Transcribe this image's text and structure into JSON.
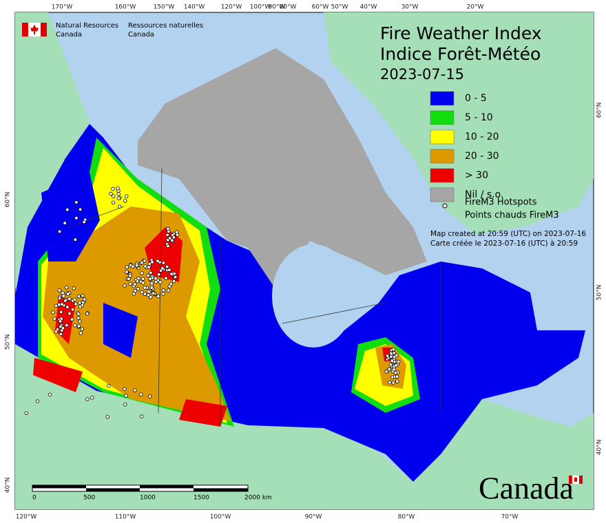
{
  "header": {
    "agency_en": [
      "Natural Resources",
      "Canada"
    ],
    "agency_fr": [
      "Ressources naturelles",
      "Canada"
    ],
    "title_en": "Fire Weather Index",
    "title_fr": "Indice Forêt-Météo",
    "date": "2023-07-15"
  },
  "legend": {
    "items": [
      {
        "label": "0 - 5",
        "color": "#0000ee"
      },
      {
        "label": "5 - 10",
        "color": "#11dd11"
      },
      {
        "label": "10 - 20",
        "color": "#ffff00"
      },
      {
        "label": "20 - 30",
        "color": "#dd9900"
      },
      {
        "label": "> 30",
        "color": "#ee0000"
      },
      {
        "label": "Nil / s.o.",
        "color": "#a6a6a6"
      }
    ],
    "hotspots": [
      "FireM3 Hotspots",
      "Points chauds FireM3"
    ]
  },
  "notes": [
    "Map created at 20:59 (UTC) on 2023-07-16",
    "Carte créée le 2023-07-16 (UTC) à 20:59"
  ],
  "graticule": {
    "top": [
      "170°W",
      "160°W",
      "150°W",
      "140°W",
      "120°W",
      "100°W",
      "90°W",
      "80°W",
      "60°W",
      "50°W",
      "40°W",
      "30°W",
      "20°W"
    ],
    "bottom": [
      "120°W",
      "110°W",
      "100°W",
      "90°W",
      "80°W",
      "70°W"
    ],
    "left": [
      "60°N",
      "50°N",
      "40°N"
    ],
    "right": [
      "60°N",
      "50°N",
      "40°N"
    ]
  },
  "scale_bar": {
    "labels": [
      "0",
      "500",
      "1000",
      "1500",
      "2000 km"
    ]
  },
  "wordmark": "Canada"
}
